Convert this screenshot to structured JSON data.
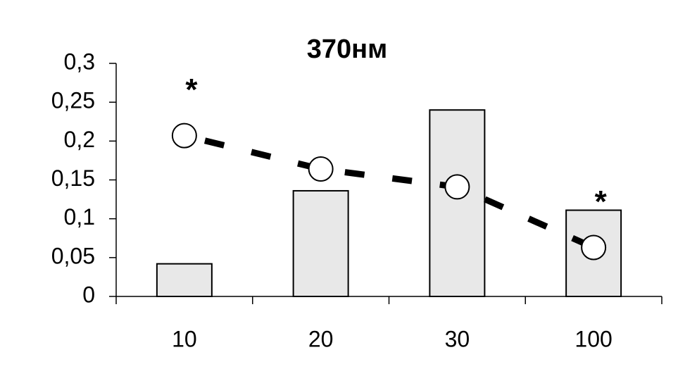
{
  "chart_data": {
    "type": "bar",
    "title": "370нм",
    "categories": [
      "10",
      "20",
      "30",
      "100"
    ],
    "series": [
      {
        "kind": "bar",
        "color": "#e8e8e8",
        "values": [
          0.042,
          0.136,
          0.24,
          0.111
        ]
      },
      {
        "kind": "line",
        "color": "#000000",
        "values": [
          0.207,
          0.164,
          0.141,
          0.063
        ]
      }
    ],
    "annotations": [
      {
        "text": "*",
        "x": "10"
      },
      {
        "text": "*",
        "x": "100"
      }
    ],
    "ylim": [
      0,
      0.3
    ],
    "yticks": [
      0,
      {
        "value": 0.05,
        "label": "0,05"
      },
      {
        "value": 0.1,
        "label": "0,1"
      },
      {
        "value": 0.15,
        "label": "0,15"
      },
      {
        "value": 0.2,
        "label": "0,2"
      },
      {
        "value": 0.25,
        "label": "0,25"
      },
      {
        "value": 0.3,
        "label": "0,3"
      }
    ],
    "grid": false
  }
}
